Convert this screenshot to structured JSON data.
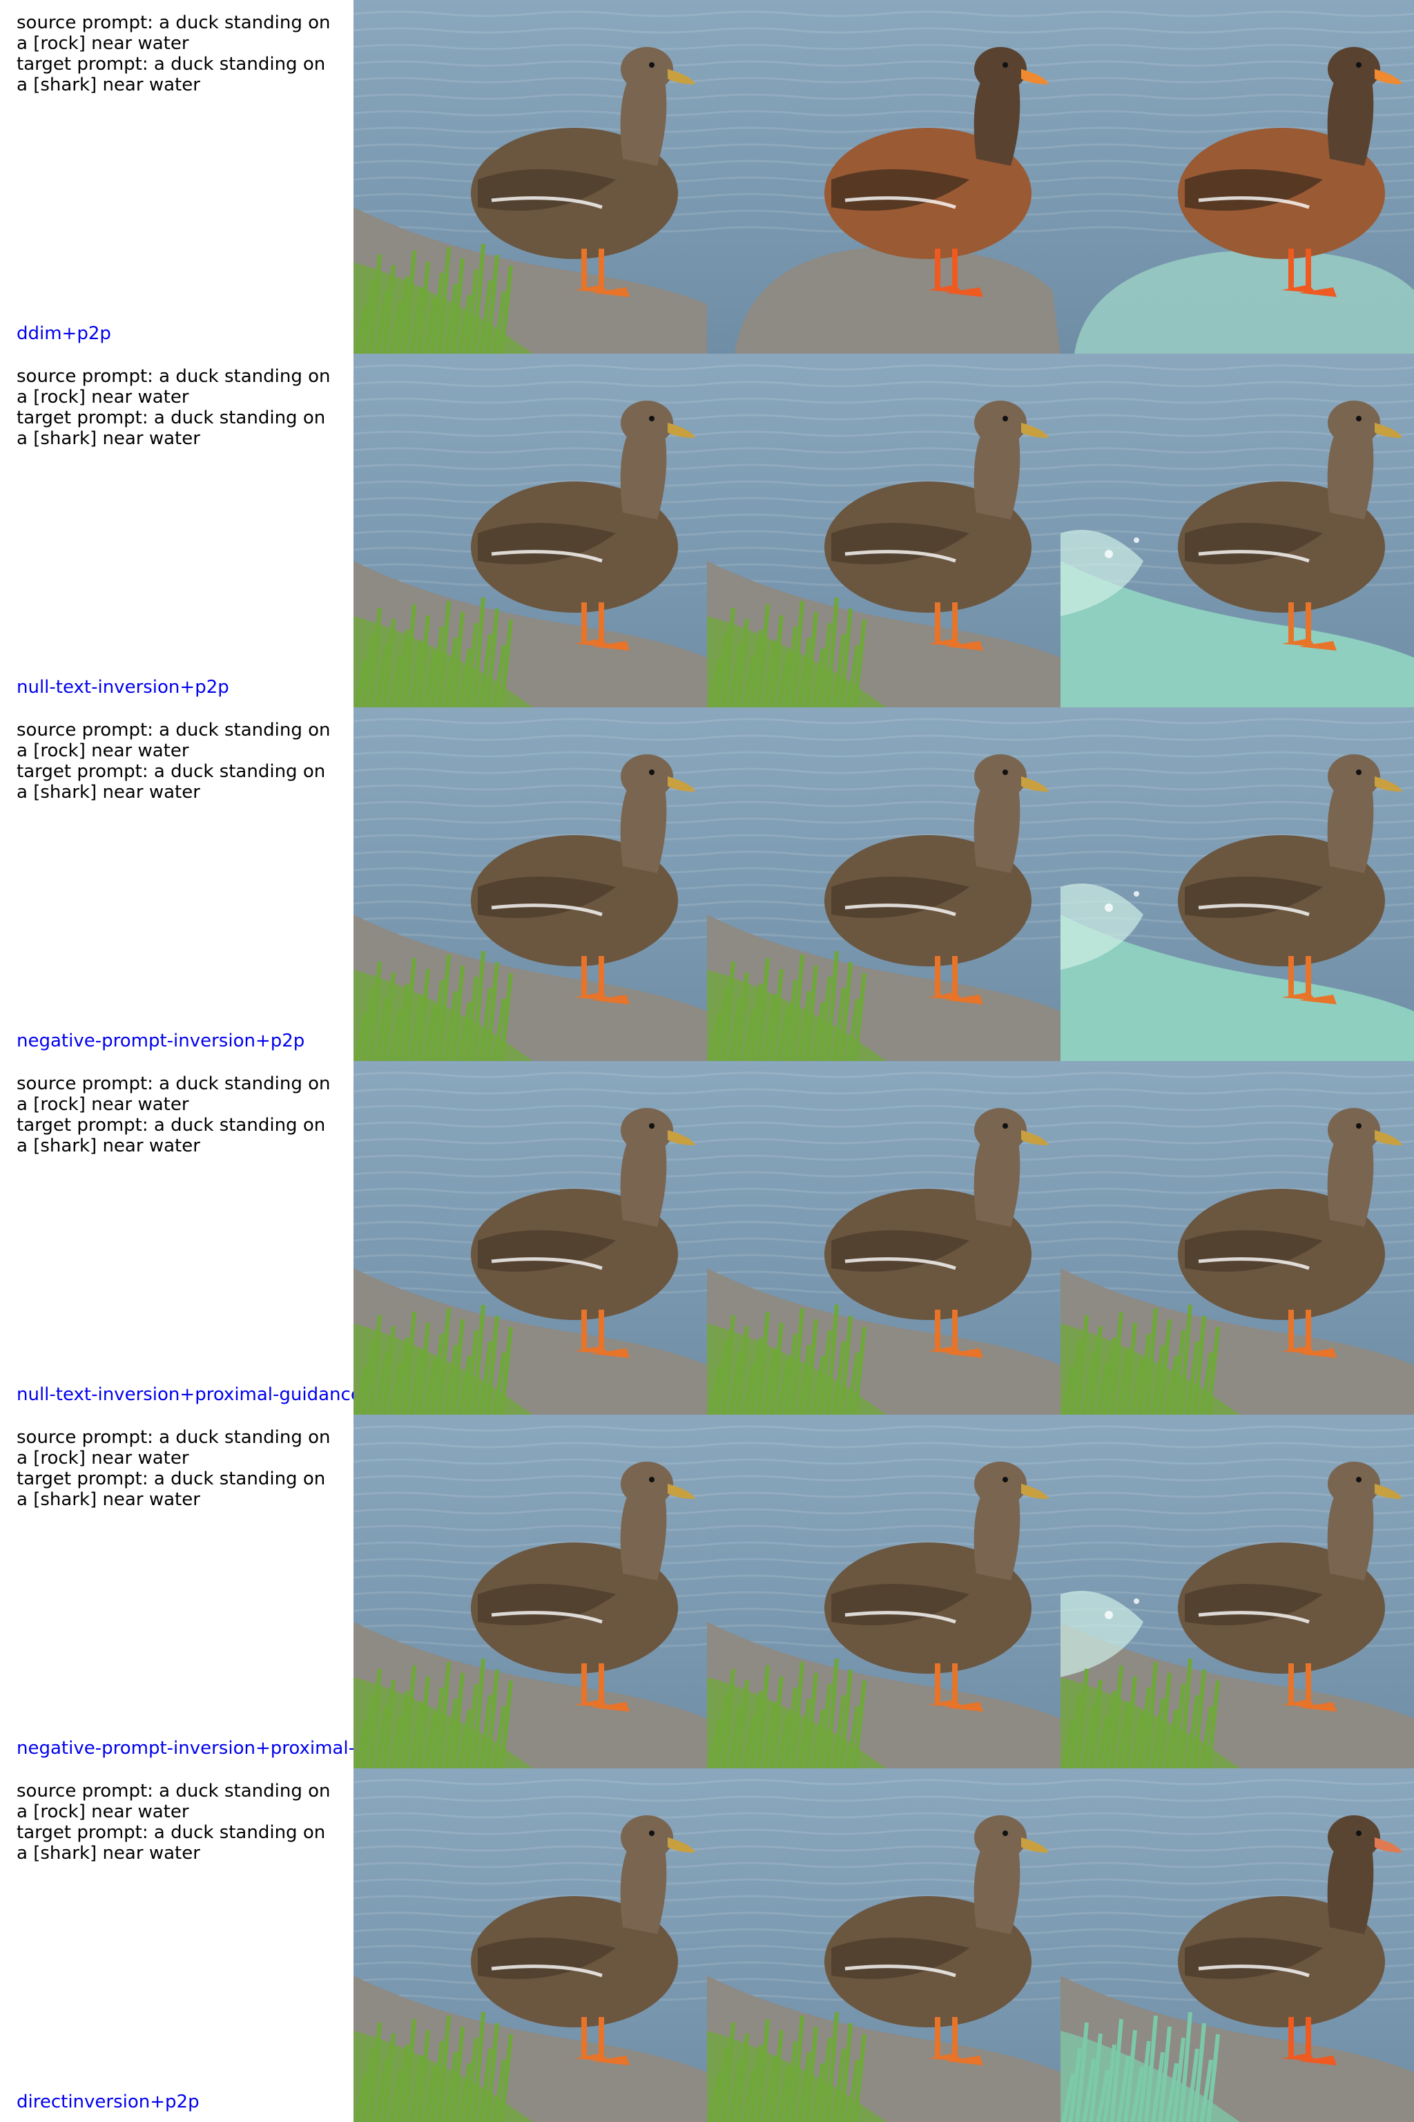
{
  "rows": [
    {
      "source_prompt": "source prompt: a duck standing on a [rock] near water",
      "target_prompt": "target prompt: a duck standing on a [shark] near water",
      "method": "ddim+p2p"
    },
    {
      "source_prompt": "source prompt: a duck standing on a [rock] near water",
      "target_prompt": "target prompt: a duck standing on a [shark] near water",
      "method": "null-text-inversion+p2p"
    },
    {
      "source_prompt": "source prompt: a duck standing on a [rock] near water",
      "target_prompt": "target prompt: a duck standing on a [shark] near water",
      "method": "negative-prompt-inversion+p2p"
    },
    {
      "source_prompt": "source prompt: a duck standing on a [rock] near water",
      "target_prompt": "target prompt: a duck standing on a [shark] near water",
      "method": "null-text-inversion+proximal-guidance"
    },
    {
      "source_prompt": "source prompt: a duck standing on a [rock] near water",
      "target_prompt": "target prompt: a duck standing on a [shark] near water",
      "method": "negative-prompt-inversion+proximal-guidance"
    },
    {
      "source_prompt": "source prompt: a duck standing on a [rock] near water",
      "target_prompt": "target prompt: a duck standing on a [shark] near water",
      "method": "directinversion+p2p"
    }
  ],
  "colors": {
    "method_label": "#0000ee",
    "prompt_text": "#000000",
    "water_natural": "#6f8ea6",
    "water_teal": "#4f9a8c",
    "grass": "#6fa83a",
    "rock": "#8e8a84",
    "duck_body": "#6b5640",
    "duck_orange_body": "#9a5a34",
    "feet": "#e8742a",
    "feet_bright": "#ef5a20",
    "shark_glass": "#9fd6c8"
  },
  "cell_styles": [
    [
      "natural",
      "stylized-rock",
      "stylized-glass"
    ],
    [
      "natural",
      "natural",
      "teal-splash"
    ],
    [
      "natural",
      "natural",
      "teal-splash"
    ],
    [
      "natural",
      "natural",
      "natural"
    ],
    [
      "natural",
      "natural",
      "natural-splash"
    ],
    [
      "natural",
      "natural",
      "teal-grass-orange"
    ]
  ]
}
